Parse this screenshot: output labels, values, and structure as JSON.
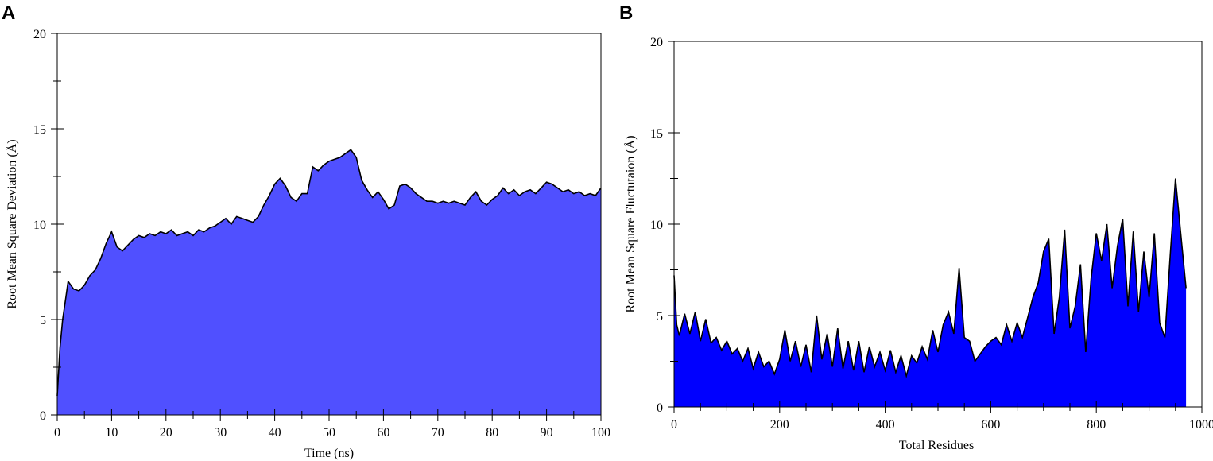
{
  "chart_data": [
    {
      "panel": "A",
      "type": "area",
      "xlabel": "Time (ns)",
      "ylabel": "Root Mean Square Deviation (Å)",
      "xlim": [
        0,
        100
      ],
      "ylim": [
        0,
        20
      ],
      "xticks": [
        0,
        10,
        20,
        30,
        40,
        50,
        60,
        70,
        80,
        90,
        100
      ],
      "yticks": [
        0,
        5,
        10,
        15,
        20
      ],
      "fill_color": "#5050ff",
      "line_color": "#000000",
      "grid": false,
      "x": [
        0,
        0.5,
        1,
        1.5,
        2,
        3,
        4,
        5,
        6,
        7,
        8,
        9,
        10,
        11,
        12,
        13,
        14,
        15,
        16,
        17,
        18,
        19,
        20,
        21,
        22,
        23,
        24,
        25,
        26,
        27,
        28,
        29,
        30,
        31,
        32,
        33,
        34,
        35,
        36,
        37,
        38,
        39,
        40,
        41,
        42,
        43,
        44,
        45,
        46,
        47,
        48,
        49,
        50,
        51,
        52,
        53,
        54,
        55,
        56,
        57,
        58,
        59,
        60,
        61,
        62,
        63,
        64,
        65,
        66,
        67,
        68,
        69,
        70,
        71,
        72,
        73,
        74,
        75,
        76,
        77,
        78,
        79,
        80,
        81,
        82,
        83,
        84,
        85,
        86,
        87,
        88,
        89,
        90,
        91,
        92,
        93,
        94,
        95,
        96,
        97,
        98,
        99,
        100
      ],
      "y": [
        1.0,
        3.5,
        5.0,
        6.0,
        7.0,
        6.6,
        6.5,
        6.8,
        7.3,
        7.6,
        8.2,
        9.0,
        9.6,
        8.8,
        8.6,
        8.9,
        9.2,
        9.4,
        9.3,
        9.5,
        9.4,
        9.6,
        9.5,
        9.7,
        9.4,
        9.5,
        9.6,
        9.4,
        9.7,
        9.6,
        9.8,
        9.9,
        10.1,
        10.3,
        10.0,
        10.4,
        10.3,
        10.2,
        10.1,
        10.4,
        11.0,
        11.5,
        12.1,
        12.4,
        12.0,
        11.4,
        11.2,
        11.6,
        11.6,
        13.0,
        12.8,
        13.1,
        13.3,
        13.4,
        13.5,
        13.7,
        13.9,
        13.5,
        12.3,
        11.8,
        11.4,
        11.7,
        11.3,
        10.8,
        11.0,
        12.0,
        12.1,
        11.9,
        11.6,
        11.4,
        11.2,
        11.2,
        11.1,
        11.2,
        11.1,
        11.2,
        11.1,
        11.0,
        11.4,
        11.7,
        11.2,
        11.0,
        11.3,
        11.5,
        11.9,
        11.6,
        11.8,
        11.5,
        11.7,
        11.8,
        11.6,
        11.9,
        12.2,
        12.1,
        11.9,
        11.7,
        11.8,
        11.6,
        11.7,
        11.5,
        11.6,
        11.5,
        11.9
      ]
    },
    {
      "panel": "B",
      "type": "area",
      "xlabel": "Total Residues",
      "ylabel": "Root Mean Square Fluctutaion (Å)",
      "xlim": [
        0,
        1000
      ],
      "ylim": [
        0,
        20
      ],
      "xticks": [
        0,
        200,
        400,
        600,
        800,
        1000
      ],
      "yticks": [
        0,
        5,
        10,
        15,
        20
      ],
      "fill_color": "#0000ff",
      "line_color": "#000000",
      "grid": false,
      "x": [
        0,
        5,
        10,
        20,
        30,
        40,
        50,
        60,
        70,
        80,
        90,
        100,
        110,
        120,
        130,
        140,
        150,
        160,
        170,
        180,
        190,
        200,
        210,
        220,
        230,
        240,
        250,
        260,
        270,
        280,
        290,
        300,
        310,
        320,
        330,
        340,
        350,
        360,
        370,
        380,
        390,
        400,
        410,
        420,
        430,
        440,
        450,
        460,
        470,
        480,
        490,
        500,
        510,
        520,
        530,
        540,
        550,
        560,
        570,
        580,
        590,
        600,
        610,
        620,
        630,
        640,
        650,
        660,
        670,
        680,
        690,
        700,
        710,
        720,
        730,
        740,
        750,
        760,
        770,
        780,
        790,
        800,
        810,
        820,
        830,
        840,
        850,
        860,
        870,
        880,
        890,
        900,
        910,
        920,
        930,
        940,
        950,
        960,
        970
      ],
      "y": [
        7.2,
        4.5,
        3.9,
        5.1,
        4.0,
        5.2,
        3.6,
        4.8,
        3.5,
        3.8,
        3.1,
        3.6,
        2.9,
        3.2,
        2.5,
        3.2,
        2.1,
        3.0,
        2.2,
        2.5,
        1.8,
        2.6,
        4.2,
        2.5,
        3.6,
        2.2,
        3.4,
        1.9,
        5.0,
        2.6,
        4.0,
        2.2,
        4.3,
        2.1,
        3.6,
        2.0,
        3.6,
        1.9,
        3.3,
        2.2,
        3.0,
        2.0,
        3.1,
        1.9,
        2.8,
        1.7,
        2.8,
        2.4,
        3.3,
        2.6,
        4.2,
        3.0,
        4.5,
        5.2,
        4.0,
        7.6,
        3.8,
        3.6,
        2.5,
        2.9,
        3.3,
        3.6,
        3.8,
        3.4,
        4.5,
        3.6,
        4.6,
        3.8,
        4.9,
        6.0,
        6.8,
        8.5,
        9.2,
        4.0,
        6.0,
        9.7,
        4.3,
        5.5,
        7.8,
        3.0,
        7.0,
        9.5,
        8.0,
        10.0,
        6.5,
        8.8,
        10.3,
        5.5,
        9.6,
        5.2,
        8.5,
        6.0,
        9.5,
        4.6,
        3.8,
        8.3,
        12.5,
        9.5,
        6.5
      ]
    }
  ]
}
